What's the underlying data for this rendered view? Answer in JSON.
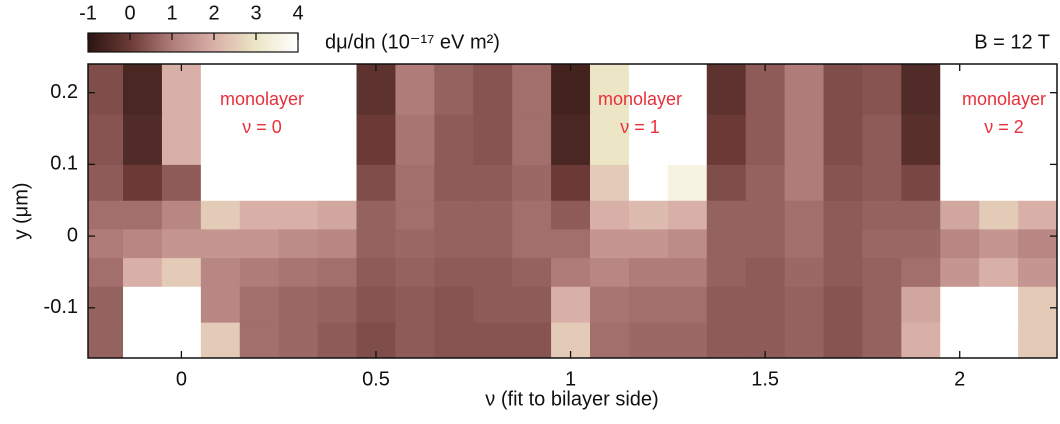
{
  "chart_data": {
    "type": "heatmap",
    "colorbar_label": "dμ/dn (10⁻¹⁷ eV m²)",
    "xlabel": "ν (fit to bilayer side)",
    "ylabel": "y (μm)",
    "annotations": [
      "monolayer",
      "ν = 0",
      "monolayer",
      "ν = 1",
      "monolayer",
      "ν = 2",
      "B = 12 T"
    ],
    "annotation_color": "#e8303a",
    "xlim": [
      -0.24,
      2.25
    ],
    "ylim": [
      -0.17,
      0.24
    ],
    "xticks": [
      0,
      0.5,
      1,
      1.5,
      2
    ],
    "yticks": [
      -0.1,
      0,
      0.1,
      0.2
    ],
    "x_edges": [
      -0.25,
      -0.15,
      -0.05,
      0.05,
      0.15,
      0.25,
      0.35,
      0.45,
      0.55,
      0.65,
      0.75,
      0.85,
      0.95,
      1.05,
      1.15,
      1.25,
      1.35,
      1.45,
      1.55,
      1.65,
      1.75,
      1.85,
      1.95,
      2.05,
      2.15,
      2.25
    ],
    "y_edges": [
      -0.17,
      -0.12,
      -0.07,
      -0.03,
      0.01,
      0.05,
      0.1,
      0.17,
      0.24
    ],
    "z": [
      [
        0.6,
        4,
        4,
        2.5,
        0.8,
        0.7,
        0.5,
        0.3,
        0.5,
        0.4,
        0.4,
        0.4,
        2.5,
        0.8,
        0.7,
        0.7,
        0.5,
        0.5,
        0.6,
        0.4,
        0.6,
        2,
        4,
        4,
        2.5
      ],
      [
        0.6,
        4,
        4,
        1.2,
        0.8,
        0.7,
        0.6,
        0.4,
        0.5,
        0.4,
        0.5,
        0.5,
        2,
        0.9,
        0.8,
        0.8,
        0.5,
        0.5,
        0.6,
        0.4,
        0.6,
        1.8,
        4,
        4,
        2.5
      ],
      [
        0.8,
        2,
        2.5,
        1.2,
        1,
        0.9,
        0.8,
        0.5,
        0.6,
        0.5,
        0.5,
        0.6,
        1,
        1.2,
        1,
        1,
        0.6,
        0.5,
        0.7,
        0.5,
        0.6,
        0.8,
        1.5,
        2,
        1.5
      ],
      [
        1,
        1.2,
        1.5,
        1.5,
        1.5,
        1.3,
        1.2,
        0.6,
        0.7,
        0.6,
        0.6,
        0.8,
        0.8,
        1.5,
        1.5,
        1.3,
        0.6,
        0.6,
        0.8,
        0.5,
        0.7,
        0.7,
        1.2,
        1.5,
        1.2
      ],
      [
        0.8,
        0.8,
        1.2,
        2.5,
        2,
        2,
        1.8,
        0.6,
        0.8,
        0.6,
        0.6,
        0.8,
        0.5,
        2,
        2.2,
        2,
        0.6,
        0.6,
        0.8,
        0.5,
        0.6,
        0.6,
        1.8,
        2.5,
        2
      ],
      [
        0.5,
        0,
        0.5,
        4,
        4,
        4,
        4,
        0.3,
        0.8,
        0.5,
        0.5,
        0.7,
        0,
        2.5,
        4,
        3.5,
        0.3,
        0.6,
        1,
        0.4,
        0.5,
        0.2,
        4,
        4,
        4
      ],
      [
        0.4,
        -0.4,
        2,
        4,
        4,
        4,
        4,
        0,
        0.9,
        0.5,
        0.4,
        0.8,
        -0.5,
        3,
        4,
        4,
        0,
        0.5,
        1,
        0.3,
        0.5,
        -0.3,
        4,
        4,
        4
      ],
      [
        0.3,
        -0.5,
        2,
        4,
        4,
        4,
        4,
        -0.2,
        1,
        0.6,
        0.4,
        0.8,
        -0.6,
        3,
        4,
        4,
        -0.2,
        0.5,
        1,
        0.3,
        0.4,
        -0.4,
        4,
        4,
        4
      ]
    ],
    "zlim": [
      -1,
      4
    ],
    "zticks": [
      -1,
      0,
      1,
      2,
      3,
      4
    ],
    "colormap": [
      "#2a1410",
      "#6b3a36",
      "#b07c7a",
      "#d9b0a8",
      "#ece6c6",
      "#ffffff"
    ]
  }
}
